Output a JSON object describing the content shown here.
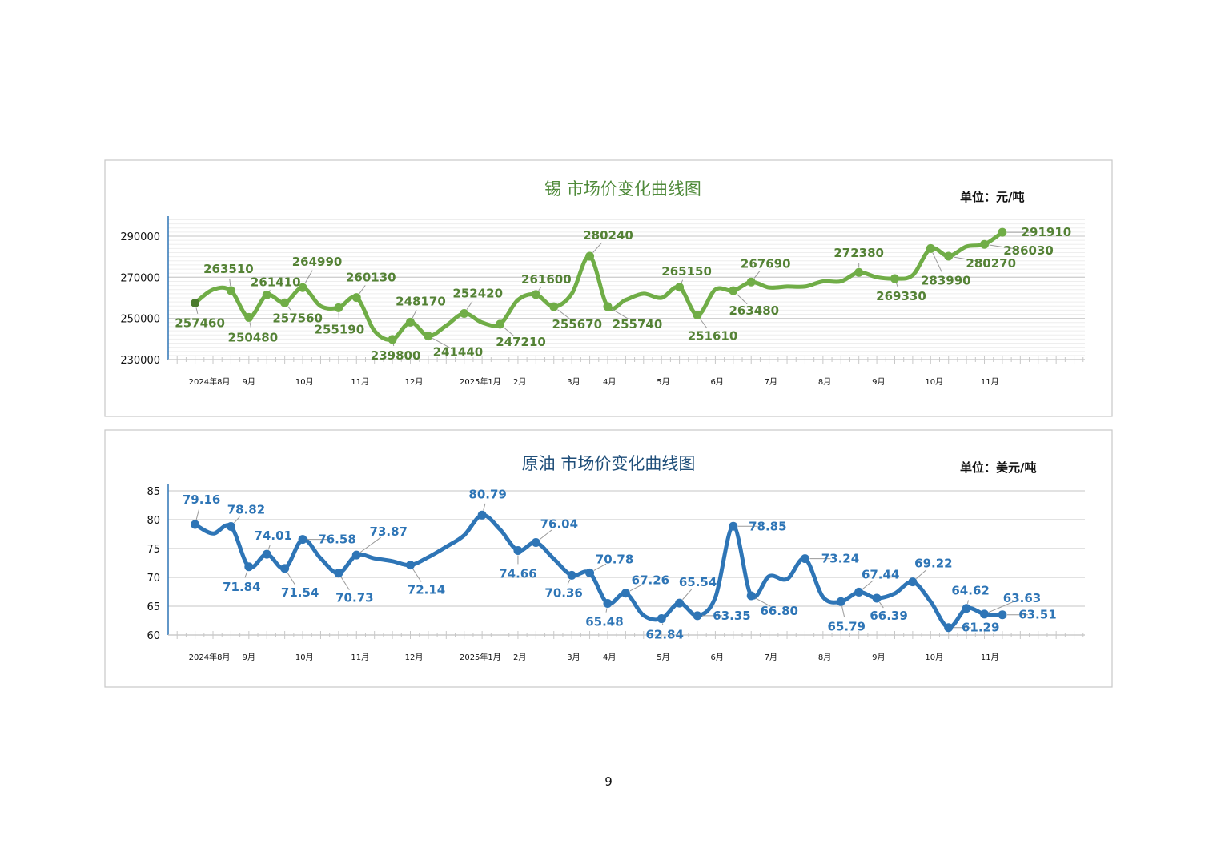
{
  "page_number": "9",
  "chart_data": [
    {
      "type": "line",
      "title": "锡  市场价变化曲线图",
      "unit_label": "单位：元/吨",
      "ylim": [
        230000,
        290000
      ],
      "yticks": [
        "230000",
        "250000",
        "270000",
        "290000"
      ],
      "ytick_values": [
        230000,
        250000,
        270000,
        290000
      ],
      "xlim": [
        -1.5,
        49.6
      ],
      "xtick_labels": [
        "2024年8月",
        "9月",
        "10月",
        "11月",
        "12月",
        "2025年1月",
        "2月",
        "3月",
        "4月",
        "5月",
        "6月",
        "7月",
        "8月",
        "9月",
        "10月",
        "11月"
      ],
      "xtick_positions": [
        0.8,
        3.0,
        6.1,
        9.2,
        12.2,
        15.9,
        18.1,
        21.1,
        23.1,
        26.1,
        29.1,
        32.1,
        35.1,
        38.1,
        41.2,
        44.3
      ],
      "color": "#70ad47",
      "label_color": "#548235",
      "x": [
        0,
        1,
        2,
        3,
        4,
        5,
        6,
        7,
        8,
        9,
        10,
        11,
        12,
        13,
        14,
        15,
        16,
        17,
        18,
        19,
        20,
        21,
        22,
        23,
        24,
        25,
        26,
        27,
        28,
        29,
        30,
        31,
        32,
        33,
        34,
        35,
        36,
        37,
        38,
        39,
        40,
        41,
        42,
        43,
        44,
        45
      ],
      "values": [
        257460,
        264000,
        263510,
        250480,
        261410,
        257560,
        264990,
        256000,
        255190,
        260130,
        244000,
        239800,
        248170,
        241440,
        246500,
        252420,
        248000,
        247210,
        259000,
        261600,
        255670,
        262000,
        280240,
        255740,
        259000,
        262000,
        260000,
        265150,
        251610,
        264000,
        263480,
        267690,
        265000,
        265500,
        265500,
        268000,
        268000,
        272380,
        270000,
        269330,
        271000,
        283990,
        280270,
        285000,
        286030,
        291910
      ],
      "labels": {
        "0": "257460",
        "2": "263510",
        "3": "250480",
        "4": "261410",
        "5": "257560",
        "6": "264990",
        "8": "255190",
        "9": "260130",
        "11": "239800",
        "12": "248170",
        "13": "241440",
        "15": "252420",
        "17": "247210",
        "19": "261600",
        "20": "255670",
        "22": "280240",
        "23": "255740",
        "27": "265150",
        "28": "251610",
        "30": "263480",
        "31": "267690",
        "37": "272380",
        "39": "269330",
        "41": "283990",
        "42": "280270",
        "44": "286030",
        "45": "291910"
      }
    },
    {
      "type": "line",
      "title": "原油  市场价变化曲线图",
      "unit_label": "单位：美元/吨",
      "ylim": [
        60,
        85
      ],
      "yticks": [
        "60",
        "65",
        "70",
        "75",
        "80",
        "85"
      ],
      "ytick_values": [
        60,
        65,
        70,
        75,
        80,
        85
      ],
      "xlim": [
        -1.5,
        49.6
      ],
      "xtick_labels": [
        "2024年8月",
        "9月",
        "10月",
        "11月",
        "12月",
        "2025年1月",
        "2月",
        "3月",
        "4月",
        "5月",
        "6月",
        "7月",
        "8月",
        "9月",
        "10月",
        "11月"
      ],
      "xtick_positions": [
        0.8,
        3.0,
        6.1,
        9.2,
        12.2,
        15.9,
        18.1,
        21.1,
        23.1,
        26.1,
        29.1,
        32.1,
        35.1,
        38.1,
        41.2,
        44.3
      ],
      "color": "#2e75b6",
      "label_color": "#2e75b6",
      "x": [
        0,
        1,
        2,
        3,
        4,
        5,
        6,
        7,
        8,
        9,
        10,
        11,
        12,
        13,
        14,
        15,
        16,
        17,
        18,
        19,
        20,
        21,
        22,
        23,
        24,
        25,
        26,
        27,
        28,
        29,
        30,
        31,
        32,
        33,
        34,
        35,
        36,
        37,
        38,
        39,
        40,
        41,
        42,
        43,
        44,
        45
      ],
      "values": [
        79.16,
        77.6,
        78.82,
        71.84,
        74.01,
        71.54,
        76.58,
        73.3,
        70.73,
        73.87,
        73.3,
        72.8,
        72.14,
        73.5,
        75.3,
        77.3,
        80.79,
        78.3,
        74.66,
        76.04,
        73.2,
        70.36,
        70.78,
        65.48,
        67.26,
        63.4,
        62.84,
        65.54,
        63.35,
        66.5,
        78.85,
        66.8,
        70.2,
        69.7,
        73.24,
        66.6,
        65.79,
        67.44,
        66.39,
        67.2,
        69.22,
        65.8,
        61.29,
        64.62,
        63.63,
        63.51
      ],
      "labels": {
        "0": "79.16",
        "2": "78.82",
        "3": "71.84",
        "4": "74.01",
        "5": "71.54",
        "6": "76.58",
        "8": "70.73",
        "9": "73.87",
        "12": "72.14",
        "16": "80.79",
        "18": "74.66",
        "19": "76.04",
        "21": "70.36",
        "22": "70.78",
        "23": "65.48",
        "24": "67.26",
        "26": "62.84",
        "27": "65.54",
        "28": "63.35",
        "30": "78.85",
        "31": "66.80",
        "34": "73.24",
        "36": "65.79",
        "37": "67.44",
        "38": "66.39",
        "40": "69.22",
        "42": "61.29",
        "43": "64.62",
        "44": "63.63",
        "45": "63.51"
      }
    }
  ]
}
